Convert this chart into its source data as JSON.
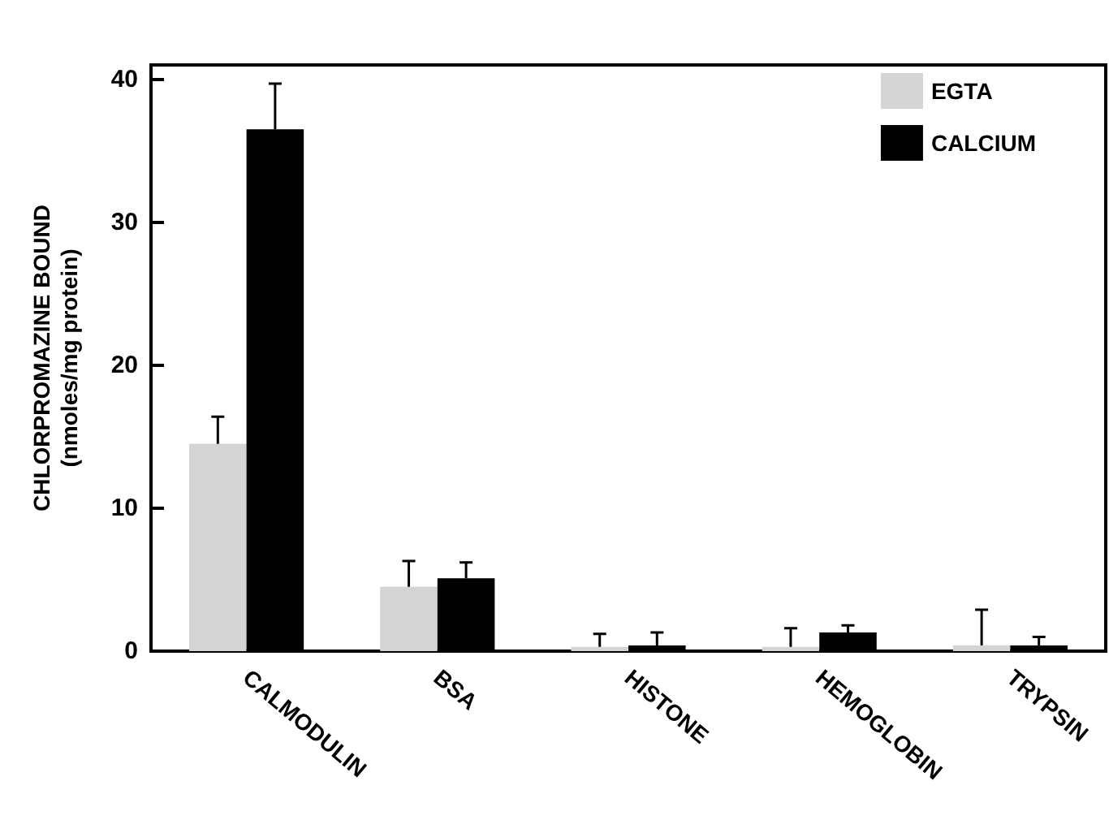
{
  "chart_data": {
    "type": "bar",
    "ylabel": "CHLORPROMAZINE BOUND\n(nmoles/mg protein)",
    "categories": [
      "CALMODULIN",
      "BSA",
      "HISTONE",
      "HEMOGLOBIN",
      "TRYPSIN"
    ],
    "series": [
      {
        "name": "EGTA",
        "color": "#d4d4d4",
        "values": [
          14.5,
          4.5,
          0.3,
          0.3,
          0.4
        ],
        "errors": [
          [
            14.5,
            16.4
          ],
          [
            4.5,
            6.3
          ],
          [
            0.3,
            1.2
          ],
          [
            0.3,
            1.6
          ],
          [
            0.4,
            2.9
          ]
        ]
      },
      {
        "name": "CALCIUM",
        "color": "#000000",
        "values": [
          36.5,
          5.1,
          0.4,
          1.3,
          0.4
        ],
        "errors": [
          [
            36.5,
            39.7
          ],
          [
            5.1,
            6.2
          ],
          [
            0.4,
            1.3
          ],
          [
            1.3,
            1.8
          ],
          [
            0.4,
            1.0
          ]
        ]
      }
    ],
    "ylim": [
      0,
      41
    ],
    "yticks": [
      0,
      10,
      20,
      30,
      40
    ],
    "grid": false,
    "legend": "top right"
  }
}
